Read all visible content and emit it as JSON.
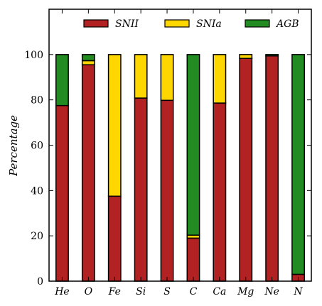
{
  "chart_data": {
    "type": "bar",
    "stacked": true,
    "ylabel": "Percentage",
    "xlabel": "",
    "ylim": [
      0,
      120
    ],
    "yticks": [
      0,
      20,
      40,
      60,
      80,
      100
    ],
    "categories": [
      "He",
      "O",
      "Fe",
      "Si",
      "S",
      "C",
      "Ca",
      "Mg",
      "Ne",
      "N"
    ],
    "series": [
      {
        "name": "SNII",
        "color": "#b22222",
        "values": [
          77.5,
          95.5,
          37.5,
          80.8,
          79.8,
          19.0,
          78.6,
          98.3,
          99.4,
          3.0
        ]
      },
      {
        "name": "SNIa",
        "color": "#ffd700",
        "values": [
          0.0,
          1.8,
          62.5,
          19.2,
          20.2,
          1.3,
          21.4,
          1.7,
          0.0,
          0.0
        ]
      },
      {
        "name": "AGB",
        "color": "#228b22",
        "values": [
          22.5,
          2.7,
          0.0,
          0.0,
          0.0,
          79.7,
          0.0,
          0.0,
          0.6,
          97.0
        ]
      }
    ],
    "legend_position": "top",
    "grid": false
  }
}
